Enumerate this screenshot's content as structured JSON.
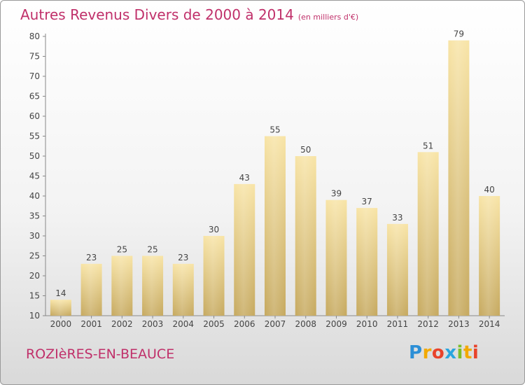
{
  "header": {
    "title": "Autres Revenus Divers de 2000 à 2014",
    "unit": "(en milliers d'€)"
  },
  "commune_name": "ROZIèRES-EN-BEAUCE",
  "brand": {
    "letters": [
      "P",
      "r",
      "o",
      "x",
      "i",
      "t",
      "i"
    ],
    "colors": [
      "#2c8fd6",
      "#f2a900",
      "#e8432b",
      "#2aa5de",
      "#7cbf2a",
      "#f2a900",
      "#e8432b"
    ]
  },
  "colors": {
    "title": "#c0306a",
    "bar_light": "#f8e3a3",
    "bar_dark": "#c4a85e"
  },
  "chart_data": {
    "type": "bar",
    "categories": [
      "2000",
      "2001",
      "2002",
      "2003",
      "2004",
      "2005",
      "2006",
      "2007",
      "2008",
      "2009",
      "2010",
      "2011",
      "2012",
      "2013",
      "2014"
    ],
    "values": [
      14,
      23,
      25,
      25,
      23,
      30,
      43,
      55,
      50,
      39,
      37,
      33,
      51,
      79,
      40
    ],
    "ylim": [
      10,
      80
    ],
    "yticks": [
      10,
      15,
      20,
      25,
      30,
      35,
      40,
      45,
      50,
      55,
      60,
      65,
      70,
      75,
      80
    ],
    "grid": false,
    "data_labels": true
  }
}
